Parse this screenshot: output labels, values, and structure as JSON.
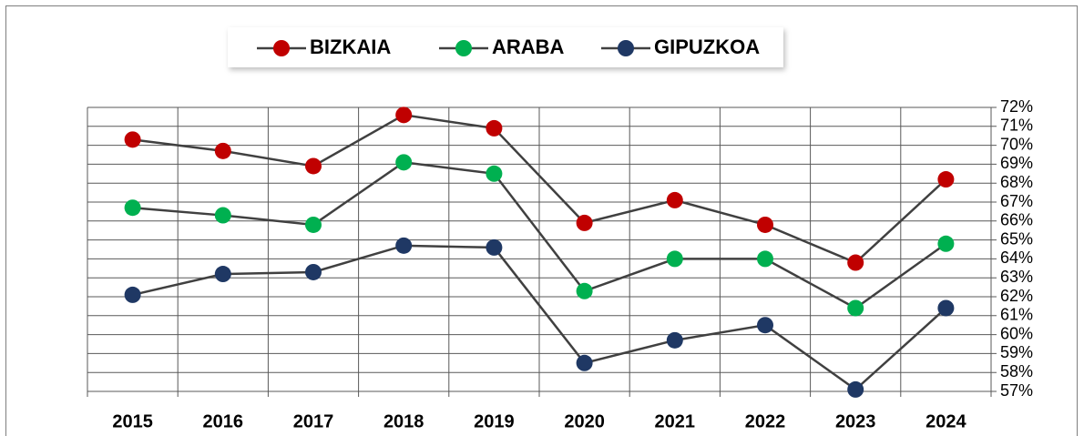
{
  "chart_data": {
    "type": "line",
    "categories": [
      "2015",
      "2016",
      "2017",
      "2018",
      "2019",
      "2020",
      "2021",
      "2022",
      "2023",
      "2024"
    ],
    "series": [
      {
        "name": "BIZKAIA",
        "color": "#c00000",
        "values": [
          70.3,
          69.7,
          68.9,
          71.6,
          70.9,
          65.9,
          67.1,
          65.8,
          63.8,
          68.2
        ]
      },
      {
        "name": "ARABA",
        "color": "#00b050",
        "values": [
          66.7,
          66.3,
          65.8,
          69.1,
          68.5,
          62.3,
          64.0,
          64.0,
          61.4,
          64.8
        ]
      },
      {
        "name": "GIPUZKOA",
        "color": "#1f3864",
        "values": [
          62.1,
          63.2,
          63.3,
          64.7,
          64.6,
          58.5,
          59.7,
          60.5,
          57.1,
          61.4
        ]
      }
    ],
    "ylim": [
      57,
      72
    ],
    "yticks": [
      {
        "value": 57,
        "label": "57%"
      },
      {
        "value": 58,
        "label": "58%"
      },
      {
        "value": 59,
        "label": "59%"
      },
      {
        "value": 60,
        "label": "60%"
      },
      {
        "value": 61,
        "label": "61%"
      },
      {
        "value": 62,
        "label": "62%"
      },
      {
        "value": 63,
        "label": "63%"
      },
      {
        "value": 64,
        "label": "64%"
      },
      {
        "value": 65,
        "label": "65%"
      },
      {
        "value": 66,
        "label": "66%"
      },
      {
        "value": 67,
        "label": "67%"
      },
      {
        "value": 68,
        "label": "68%"
      },
      {
        "value": 69,
        "label": "69%"
      },
      {
        "value": 70,
        "label": "70%"
      },
      {
        "value": 71,
        "label": "71%"
      },
      {
        "value": 72,
        "label": "72%"
      }
    ],
    "grid": true
  }
}
